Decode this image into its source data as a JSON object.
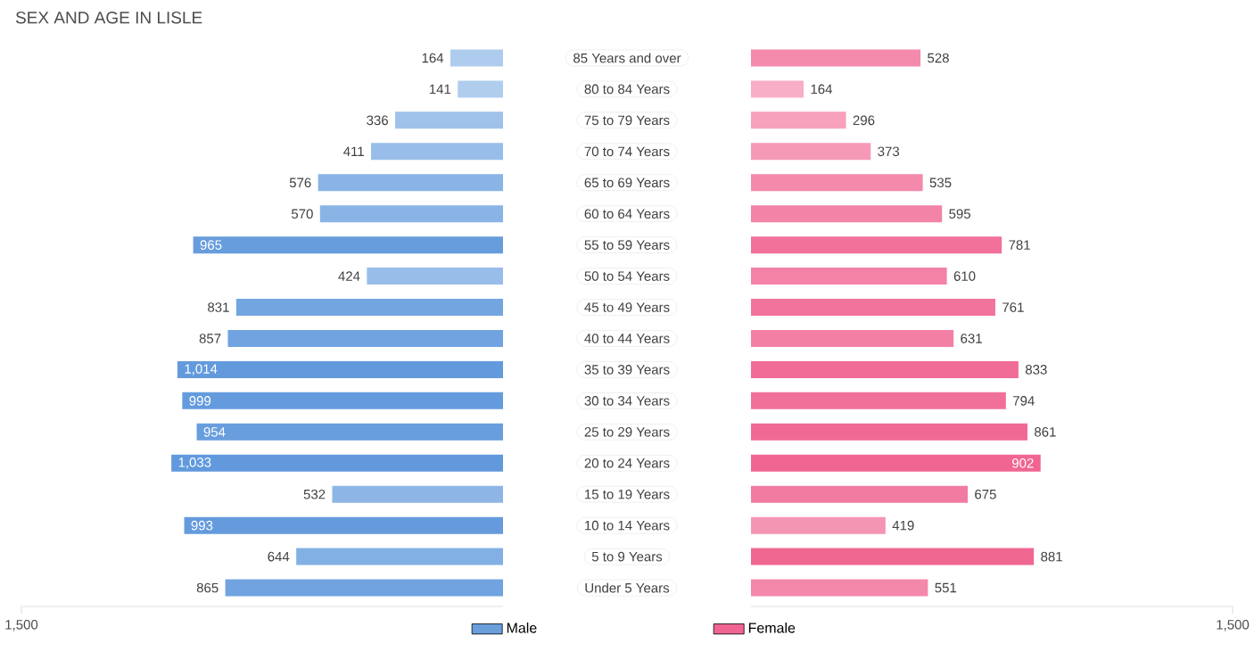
{
  "chart_data": [
    {
      "type": "bar",
      "orientation": "horizontal",
      "title": "SEX AND AGE IN LISLE",
      "categories": [
        "85 Years and over",
        "80 to 84 Years",
        "75 to 79 Years",
        "70 to 74 Years",
        "65 to 69 Years",
        "60 to 64 Years",
        "55 to 59 Years",
        "50 to 54 Years",
        "45 to 49 Years",
        "40 to 44 Years",
        "35 to 39 Years",
        "30 to 34 Years",
        "25 to 29 Years",
        "20 to 24 Years",
        "15 to 19 Years",
        "10 to 14 Years",
        "5 to 9 Years",
        "Under 5 Years"
      ],
      "series": [
        {
          "name": "Male",
          "color": "#6a9fdc",
          "values": [
            164,
            141,
            336,
            411,
            576,
            570,
            965,
            424,
            831,
            857,
            1014,
            999,
            954,
            1033,
            532,
            993,
            644,
            865
          ],
          "value_labels": [
            "164",
            "141",
            "336",
            "411",
            "576",
            "570",
            "965",
            "424",
            "831",
            "857",
            "1,014",
            "999",
            "954",
            "1,033",
            "532",
            "993",
            "644",
            "865"
          ],
          "colors": [
            "#aeccee",
            "#b0cdee",
            "#9fc2ea",
            "#98bde9",
            "#89b4e5",
            "#8ab4e5",
            "#679ddd",
            "#97bde8",
            "#73a5e0",
            "#71a3e0",
            "#639adc",
            "#649bdd",
            "#689ede",
            "#6199dc",
            "#8db6e6",
            "#659bdd",
            "#83b0e4",
            "#70a3df"
          ]
        }
      ],
      "xlim": [
        1500,
        0
      ],
      "xticks": [
        {
          "value": 1500,
          "label": "1,500"
        }
      ],
      "legend": "bottom"
    },
    {
      "type": "bar",
      "orientation": "horizontal",
      "categories": [
        null,
        null,
        null,
        null,
        null,
        null,
        null,
        null,
        null,
        null,
        null,
        null,
        null,
        null,
        null,
        null,
        null,
        null
      ],
      "series": [
        {
          "name": "Female",
          "color": "#f06591",
          "values": [
            528,
            164,
            296,
            373,
            535,
            595,
            781,
            610,
            761,
            631,
            833,
            794,
            861,
            902,
            675,
            419,
            881,
            551
          ],
          "value_labels": [
            "528",
            "164",
            "296",
            "373",
            "535",
            "595",
            "781",
            "610",
            "761",
            "631",
            "833",
            "794",
            "861",
            "902",
            "675",
            "419",
            "881",
            "551"
          ],
          "colors": [
            "#f48aac",
            "#f8aec6",
            "#f7a1bd",
            "#f699b7",
            "#f489ab",
            "#f383a7",
            "#f1719a",
            "#f382a6",
            "#f2739b",
            "#f380a4",
            "#f16c96",
            "#f17099",
            "#f06994",
            "#f06591",
            "#f27ba1",
            "#f595b4",
            "#f06792",
            "#f488aa"
          ]
        }
      ],
      "xlim": [
        0,
        1500
      ],
      "xticks": [
        {
          "value": 1500,
          "label": "1,500"
        }
      ],
      "tick_labels": "x",
      "legend": "bottom"
    }
  ]
}
